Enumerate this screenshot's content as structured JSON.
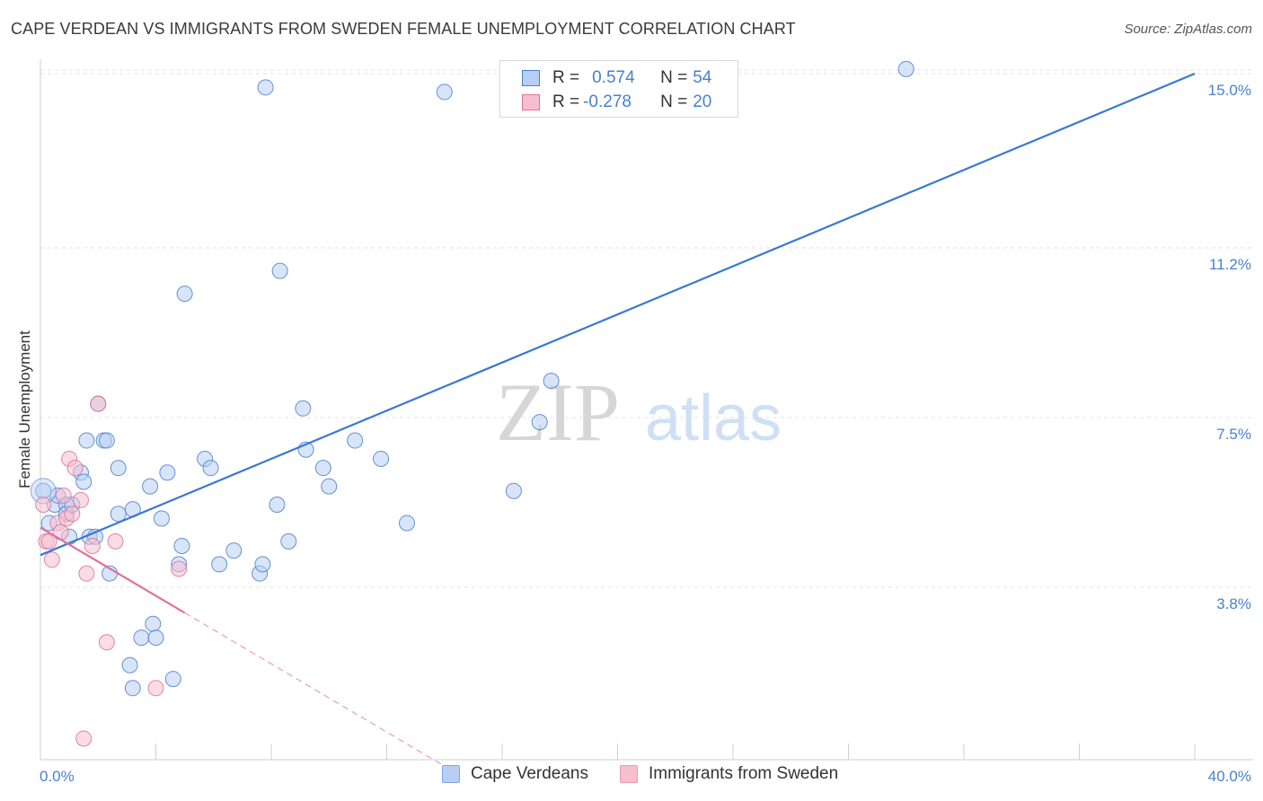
{
  "header": {
    "title": "CAPE VERDEAN VS IMMIGRANTS FROM SWEDEN FEMALE UNEMPLOYMENT CORRELATION CHART",
    "source": "Source: ZipAtlas.com"
  },
  "watermark": {
    "zip": "ZIP",
    "atlas": "atlas"
  },
  "colors": {
    "blue": "#4a7fd0",
    "blue_fill": "#b8cff3",
    "pink": "#e0709a",
    "pink_fill": "#f5bfd0"
  },
  "legend": {
    "rows": [
      {
        "r_label": "R = ",
        "r_value": "0.574",
        "n_label": "N = ",
        "n_value": "54"
      },
      {
        "r_label": "R = ",
        "r_value": "-0.278",
        "n_label": "N = ",
        "n_value": "20"
      }
    ]
  },
  "chart_data": {
    "type": "scatter",
    "title": "CAPE VERDEAN VS IMMIGRANTS FROM SWEDEN FEMALE UNEMPLOYMENT CORRELATION CHART",
    "xlabel": "",
    "ylabel": "Female Unemployment",
    "xlim": [
      0,
      40
    ],
    "ylim": [
      0,
      15.5
    ],
    "x_tick_labels": [
      "0.0%",
      "40.0%"
    ],
    "y_ticks": [
      3.8,
      7.5,
      11.2,
      15.0
    ],
    "y_tick_labels": [
      "3.8%",
      "7.5%",
      "11.2%",
      "15.0%"
    ],
    "series": [
      {
        "name": "Cape Verdeans",
        "color": "#4a7fd0",
        "trend": {
          "x": [
            0,
            40
          ],
          "y": [
            4.5,
            15.0
          ],
          "solid_to_x": 40
        },
        "points": [
          [
            0.1,
            5.9
          ],
          [
            0.3,
            5.2
          ],
          [
            0.5,
            5.6
          ],
          [
            0.6,
            5.8
          ],
          [
            0.9,
            5.6
          ],
          [
            0.9,
            5.4
          ],
          [
            1.0,
            4.9
          ],
          [
            1.1,
            5.6
          ],
          [
            1.4,
            6.3
          ],
          [
            1.5,
            6.1
          ],
          [
            1.6,
            7.0
          ],
          [
            1.7,
            4.9
          ],
          [
            1.9,
            4.9
          ],
          [
            2.0,
            7.8
          ],
          [
            2.2,
            7.0
          ],
          [
            2.3,
            7.0
          ],
          [
            2.4,
            4.1
          ],
          [
            2.7,
            5.4
          ],
          [
            2.7,
            6.4
          ],
          [
            3.1,
            2.1
          ],
          [
            3.2,
            1.6
          ],
          [
            3.2,
            5.5
          ],
          [
            3.5,
            2.7
          ],
          [
            3.8,
            6.0
          ],
          [
            3.9,
            3.0
          ],
          [
            4.0,
            2.7
          ],
          [
            4.2,
            5.3
          ],
          [
            4.4,
            6.3
          ],
          [
            4.6,
            1.8
          ],
          [
            4.8,
            4.3
          ],
          [
            4.9,
            4.7
          ],
          [
            5.0,
            10.2
          ],
          [
            5.7,
            6.6
          ],
          [
            5.9,
            6.4
          ],
          [
            6.2,
            4.3
          ],
          [
            6.7,
            4.6
          ],
          [
            7.6,
            4.1
          ],
          [
            7.7,
            4.3
          ],
          [
            7.8,
            14.7
          ],
          [
            8.2,
            5.6
          ],
          [
            8.3,
            10.7
          ],
          [
            8.6,
            4.8
          ],
          [
            9.1,
            7.7
          ],
          [
            9.2,
            6.8
          ],
          [
            9.8,
            6.4
          ],
          [
            10.0,
            6.0
          ],
          [
            10.9,
            7.0
          ],
          [
            11.8,
            6.6
          ],
          [
            12.7,
            5.2
          ],
          [
            14.0,
            14.6
          ],
          [
            16.4,
            5.9
          ],
          [
            17.3,
            7.4
          ],
          [
            17.7,
            8.3
          ],
          [
            30.0,
            15.1
          ]
        ]
      },
      {
        "name": "Immigrants from Sweden",
        "color": "#e0709a",
        "trend": {
          "x": [
            0,
            14.0
          ],
          "y": [
            5.1,
            -0.1
          ],
          "solid_to_x": 5.0
        },
        "points": [
          [
            0.1,
            5.6
          ],
          [
            0.2,
            4.8
          ],
          [
            0.3,
            4.8
          ],
          [
            0.4,
            4.4
          ],
          [
            0.6,
            5.2
          ],
          [
            0.7,
            5.0
          ],
          [
            0.8,
            5.8
          ],
          [
            0.9,
            5.3
          ],
          [
            1.0,
            6.6
          ],
          [
            1.1,
            5.4
          ],
          [
            1.2,
            6.4
          ],
          [
            1.4,
            5.7
          ],
          [
            1.6,
            4.1
          ],
          [
            1.8,
            4.7
          ],
          [
            2.0,
            7.8
          ],
          [
            2.3,
            2.6
          ],
          [
            2.6,
            4.8
          ],
          [
            4.0,
            1.6
          ],
          [
            4.8,
            4.2
          ],
          [
            1.5,
            0.5
          ]
        ]
      }
    ]
  }
}
